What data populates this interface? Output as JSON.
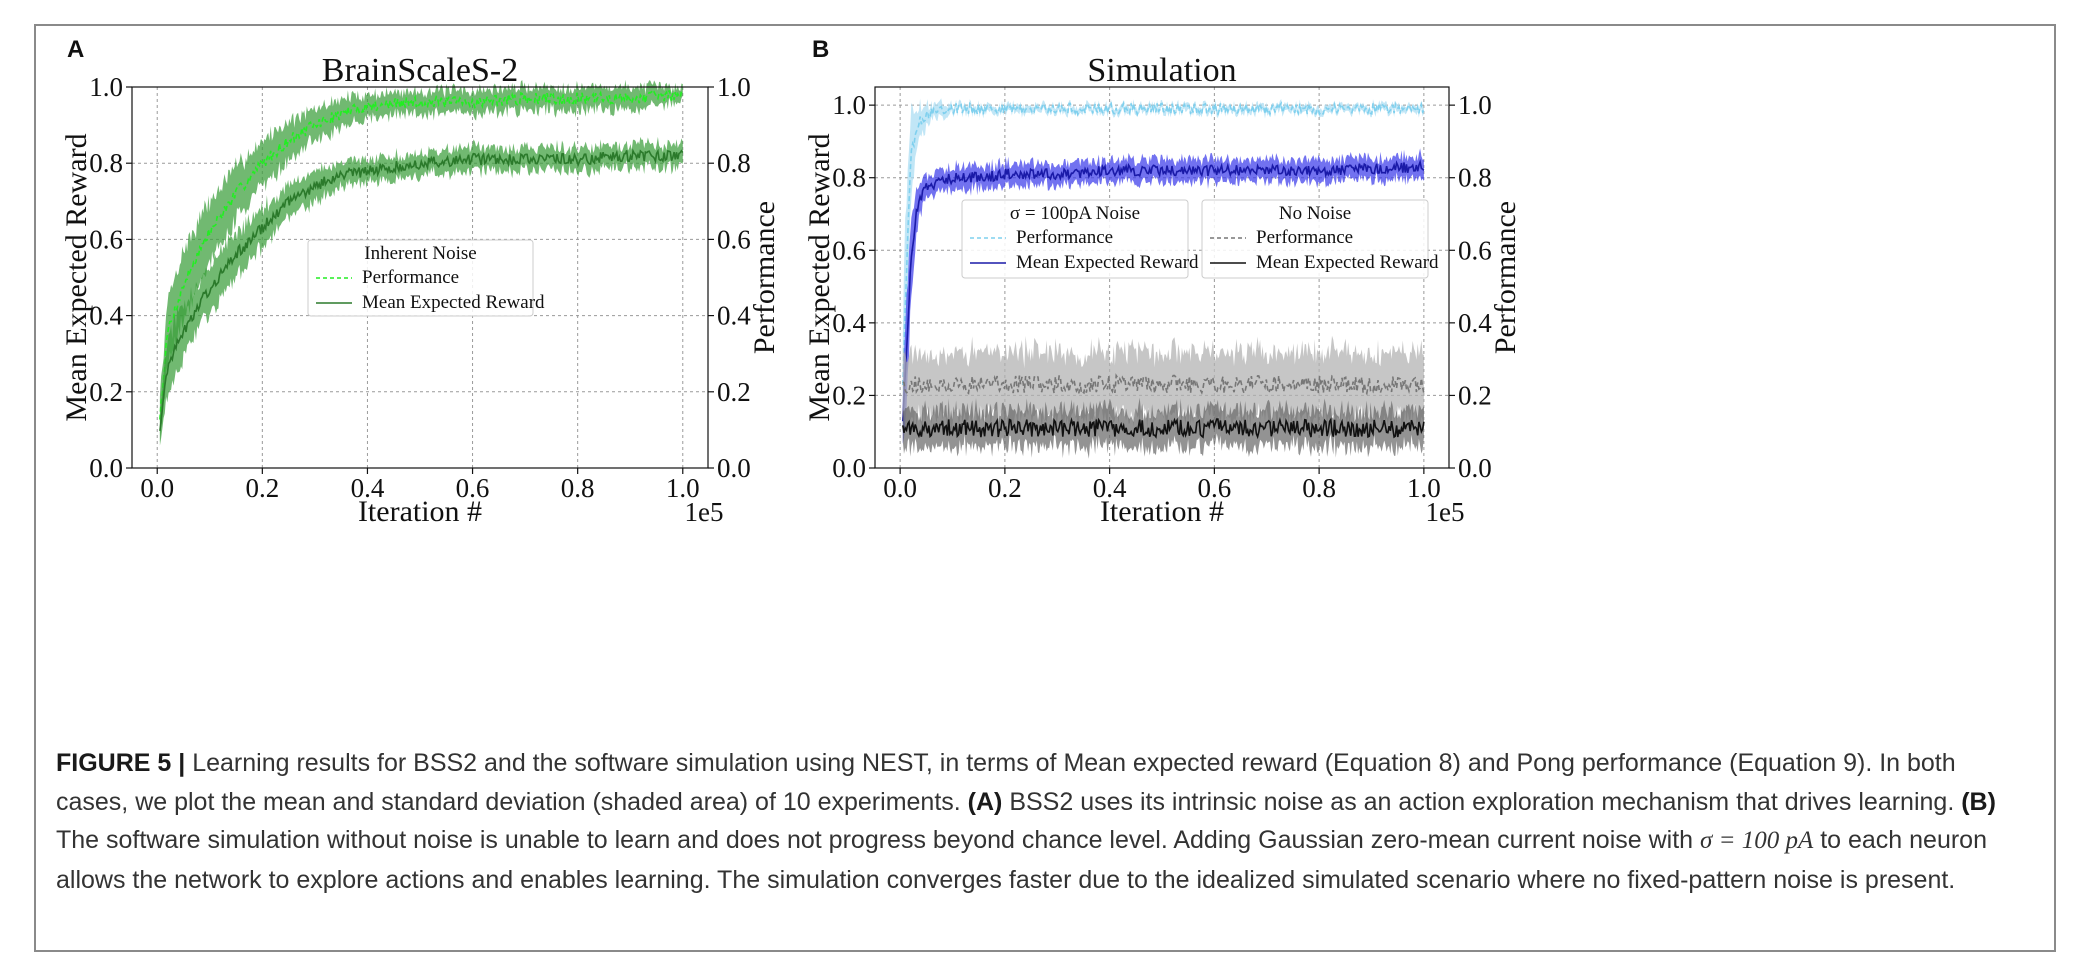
{
  "chart_data": [
    {
      "panel": "A",
      "type": "line",
      "title": "BrainScaleS-2",
      "xlabel": "Iteration #",
      "ylabel": "Mean Expected Reward",
      "ylabel_right": "Performance",
      "x_exponent": "1e5",
      "xlim": [
        0.0,
        1.0
      ],
      "ylim": [
        0.0,
        1.0
      ],
      "ylim_right": [
        0.0,
        1.0
      ],
      "x_ticks": [
        "0.0",
        "0.2",
        "0.4",
        "0.6",
        "0.8",
        "1.0"
      ],
      "y_ticks": [
        "0.0",
        "0.2",
        "0.4",
        "0.6",
        "0.8",
        "1.0"
      ],
      "grid": true,
      "legend": {
        "title": "Inherent Noise",
        "placement": "center-right",
        "entries": [
          "Performance",
          "Mean Expected Reward"
        ]
      },
      "x": [
        0.0,
        0.02,
        0.05,
        0.08,
        0.1,
        0.15,
        0.2,
        0.25,
        0.3,
        0.35,
        0.4,
        0.5,
        0.6,
        0.7,
        0.8,
        0.9,
        1.0
      ],
      "series": [
        {
          "name": "Performance",
          "style": "dashed",
          "color": "#22ee22",
          "band_color": "#3a9e3a",
          "values": [
            0.06,
            0.36,
            0.48,
            0.57,
            0.62,
            0.72,
            0.8,
            0.86,
            0.9,
            0.93,
            0.95,
            0.96,
            0.96,
            0.97,
            0.97,
            0.97,
            0.98
          ],
          "std": [
            0.04,
            0.08,
            0.09,
            0.08,
            0.08,
            0.07,
            0.06,
            0.05,
            0.04,
            0.04,
            0.03,
            0.03,
            0.03,
            0.03,
            0.03,
            0.03,
            0.02
          ]
        },
        {
          "name": "Mean Expected Reward",
          "style": "solid",
          "color": "#2b7a2b",
          "band_color": "#3a9e3a",
          "values": [
            0.05,
            0.27,
            0.36,
            0.43,
            0.47,
            0.56,
            0.63,
            0.7,
            0.74,
            0.77,
            0.78,
            0.8,
            0.81,
            0.81,
            0.81,
            0.82,
            0.82
          ],
          "std": [
            0.03,
            0.07,
            0.07,
            0.06,
            0.06,
            0.06,
            0.05,
            0.04,
            0.04,
            0.03,
            0.03,
            0.03,
            0.03,
            0.03,
            0.03,
            0.03,
            0.03
          ]
        }
      ]
    },
    {
      "panel": "B",
      "type": "line",
      "title": "Simulation",
      "xlabel": "Iteration #",
      "ylabel": "Mean Expected Reward",
      "ylabel_right": "Performance",
      "x_exponent": "1e5",
      "xlim": [
        0.0,
        1.0
      ],
      "ylim": [
        0.0,
        1.05
      ],
      "ylim_right": [
        0.0,
        1.05
      ],
      "x_ticks": [
        "0.0",
        "0.2",
        "0.4",
        "0.6",
        "0.8",
        "1.0"
      ],
      "y_ticks": [
        "0.0",
        "0.2",
        "0.4",
        "0.6",
        "0.8",
        "1.0"
      ],
      "grid": true,
      "legends": [
        {
          "title": "σ = 100pA Noise",
          "placement": "upper-center",
          "entries": [
            "Performance",
            "Mean Expected Reward"
          ]
        },
        {
          "title": "No Noise",
          "placement": "upper-right",
          "entries": [
            "Performance",
            "Mean Expected Reward"
          ]
        }
      ],
      "x": [
        0.0,
        0.01,
        0.02,
        0.03,
        0.04,
        0.05,
        0.06,
        0.08,
        0.1,
        0.15,
        0.2,
        0.3,
        0.4,
        0.6,
        0.8,
        1.0
      ],
      "series": [
        {
          "name": "Performance",
          "group": "σ = 100pA Noise",
          "style": "dashed",
          "color": "#7fd0ee",
          "band_color": "#a9dcf2",
          "values": [
            0.0,
            0.45,
            0.85,
            0.93,
            0.96,
            0.97,
            0.98,
            0.99,
            0.99,
            0.99,
            0.99,
            0.99,
            0.99,
            0.99,
            0.99,
            0.99
          ],
          "std": [
            0.0,
            0.25,
            0.12,
            0.06,
            0.04,
            0.03,
            0.02,
            0.02,
            0.01,
            0.01,
            0.01,
            0.01,
            0.01,
            0.01,
            0.01,
            0.01
          ]
        },
        {
          "name": "Mean Expected Reward",
          "group": "σ = 100pA Noise",
          "style": "solid",
          "color": "#1a1aa8",
          "band_color": "#3b3bea",
          "values": [
            0.0,
            0.25,
            0.55,
            0.7,
            0.75,
            0.77,
            0.78,
            0.79,
            0.8,
            0.8,
            0.81,
            0.81,
            0.82,
            0.82,
            0.82,
            0.83
          ],
          "std": [
            0.0,
            0.15,
            0.1,
            0.06,
            0.04,
            0.03,
            0.03,
            0.03,
            0.03,
            0.03,
            0.03,
            0.03,
            0.03,
            0.03,
            0.03,
            0.03
          ]
        },
        {
          "name": "Performance",
          "group": "No Noise",
          "style": "dashed",
          "color": "#777777",
          "band_color": "#b0b0b0",
          "values": [
            0.23,
            0.23,
            0.23,
            0.23,
            0.23,
            0.23,
            0.23,
            0.23,
            0.23,
            0.23,
            0.23,
            0.23,
            0.23,
            0.23,
            0.23,
            0.23
          ],
          "std": [
            0.09,
            0.09,
            0.09,
            0.09,
            0.09,
            0.09,
            0.09,
            0.09,
            0.09,
            0.09,
            0.09,
            0.09,
            0.09,
            0.09,
            0.09,
            0.09
          ]
        },
        {
          "name": "Mean Expected Reward",
          "group": "No Noise",
          "style": "solid",
          "color": "#111111",
          "band_color": "#6a6a6a",
          "values": [
            0.11,
            0.11,
            0.11,
            0.11,
            0.11,
            0.11,
            0.11,
            0.11,
            0.11,
            0.11,
            0.11,
            0.11,
            0.11,
            0.11,
            0.11,
            0.11
          ],
          "std": [
            0.05,
            0.05,
            0.05,
            0.05,
            0.05,
            0.05,
            0.05,
            0.05,
            0.05,
            0.05,
            0.05,
            0.05,
            0.05,
            0.05,
            0.05,
            0.05
          ]
        }
      ]
    }
  ],
  "caption": {
    "label": "FIGURE 5 |",
    "intro": " Learning results for BSS2 and the software simulation using NEST, in terms of Mean expected reward (Equation 8) and Pong performance (Equation 9). In both cases, we plot the mean and standard deviation (shaded area) of 10 experiments. ",
    "a_label": "(A)",
    "a_text": " BSS2 uses its intrinsic noise as an action exploration mechanism that drives learning. ",
    "b_label": "(B)",
    "b_text": " The software simulation without noise is unable to learn and does not progress beyond chance level. Adding Gaussian zero-mean current noise with ",
    "sigma_expr": "σ = 100 pA",
    "b_text2": " to each neuron allows the network to explore actions and enables learning. The simulation converges faster due to the idealized simulated scenario where no fixed-pattern noise is present."
  }
}
